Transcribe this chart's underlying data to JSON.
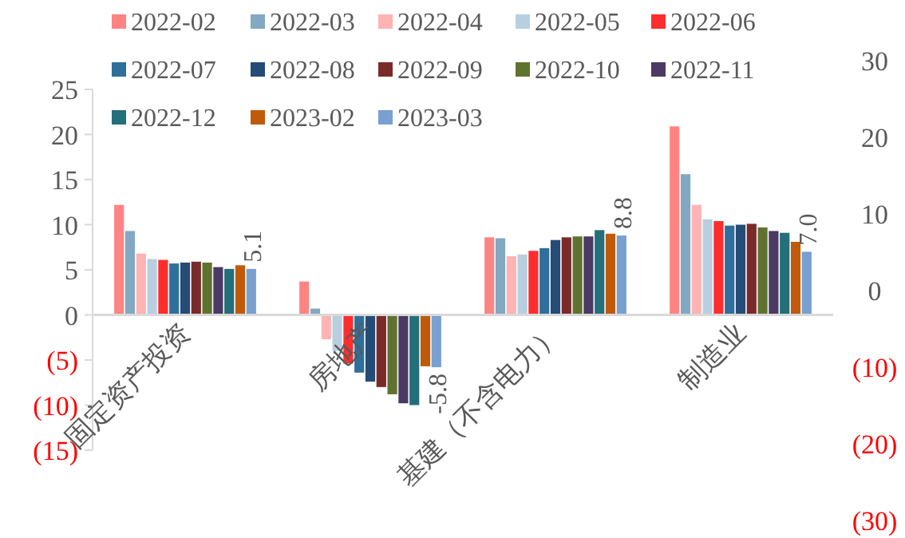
{
  "chart_data": {
    "type": "bar",
    "categories": [
      "固定资产投资",
      "房地产",
      "基建（不含电力）",
      "制造业"
    ],
    "series": [
      {
        "name": "2022-02",
        "color": "#fe8484",
        "values": [
          12.2,
          3.7,
          8.6,
          20.9
        ]
      },
      {
        "name": "2022-03",
        "color": "#82a8c2",
        "values": [
          9.3,
          0.7,
          8.5,
          15.6
        ]
      },
      {
        "name": "2022-04",
        "color": "#ffb3b3",
        "values": [
          6.8,
          -2.7,
          6.5,
          12.2
        ]
      },
      {
        "name": "2022-05",
        "color": "#b8cfe0",
        "values": [
          6.2,
          -4.0,
          6.7,
          10.6
        ]
      },
      {
        "name": "2022-06",
        "color": "#ff2d2d",
        "values": [
          6.1,
          -5.4,
          7.1,
          10.4
        ]
      },
      {
        "name": "2022-07",
        "color": "#2e6f9b",
        "values": [
          5.7,
          -6.4,
          7.4,
          9.9
        ]
      },
      {
        "name": "2022-08",
        "color": "#254b77",
        "values": [
          5.8,
          -7.4,
          8.3,
          10.0
        ]
      },
      {
        "name": "2022-09",
        "color": "#7b2a2a",
        "values": [
          5.9,
          -8.0,
          8.6,
          10.1
        ]
      },
      {
        "name": "2022-10",
        "color": "#5f7330",
        "values": [
          5.8,
          -8.8,
          8.7,
          9.7
        ]
      },
      {
        "name": "2022-11",
        "color": "#4b3a63",
        "values": [
          5.3,
          -9.8,
          8.7,
          9.3
        ]
      },
      {
        "name": "2022-12",
        "color": "#236f7a",
        "values": [
          5.1,
          -10.0,
          9.4,
          9.1
        ]
      },
      {
        "name": "2023-02",
        "color": "#c05a0a",
        "values": [
          5.5,
          -5.7,
          9.0,
          8.1
        ]
      },
      {
        "name": "2023-03",
        "color": "#78a0d0",
        "values": [
          5.1,
          -5.8,
          8.8,
          7.0
        ],
        "value_labels": [
          "5.1",
          "-5.8",
          "8.8",
          "7.0"
        ]
      }
    ],
    "ylim": [
      -15,
      25
    ],
    "yticks": [
      {
        "value": -15,
        "label": "(15)"
      },
      {
        "value": -10,
        "label": "(10)"
      },
      {
        "value": -5,
        "label": "(5)"
      },
      0,
      5,
      10,
      15,
      20,
      25
    ],
    "y2lim": [
      -30,
      30
    ],
    "y2ticks": [
      {
        "value": -30,
        "label": "(30)"
      },
      {
        "value": -20,
        "label": "(20)"
      },
      {
        "value": -10,
        "label": "(10)"
      },
      0,
      10,
      20,
      30
    ],
    "legend": "top",
    "grid": false
  }
}
